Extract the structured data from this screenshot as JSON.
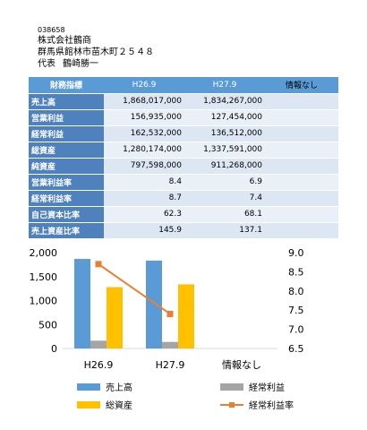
{
  "header": {
    "code": "038658",
    "company": "株式会社鶴商",
    "address": "群馬県館林市苗木町２５４８",
    "rep_title": "代表",
    "rep_name": "鶴崎勝一"
  },
  "table": {
    "header": [
      "財務指標",
      "H26.9",
      "H27.9",
      "情報なし"
    ],
    "rows": [
      {
        "label": "売上高",
        "v1": "1,868,017,000",
        "v2": "1,834,267,000",
        "v3": ""
      },
      {
        "label": "営業利益",
        "v1": "156,935,000",
        "v2": "127,454,000",
        "v3": ""
      },
      {
        "label": "経常利益",
        "v1": "162,532,000",
        "v2": "136,512,000",
        "v3": ""
      },
      {
        "label": "総資産",
        "v1": "1,280,174,000",
        "v2": "1,337,591,000",
        "v3": ""
      },
      {
        "label": "純資産",
        "v1": "797,598,000",
        "v2": "911,268,000",
        "v3": ""
      },
      {
        "label": "営業利益率",
        "v1": "8.4",
        "v2": "6.9",
        "v3": ""
      },
      {
        "label": "経常利益率",
        "v1": "8.7",
        "v2": "7.4",
        "v3": ""
      },
      {
        "label": "自己資本比率",
        "v1": "62.3",
        "v2": "68.1",
        "v3": ""
      },
      {
        "label": "売上資産比率",
        "v1": "145.9",
        "v2": "137.1",
        "v3": ""
      }
    ]
  },
  "chart_data": {
    "type": "bar",
    "categories": [
      "H26.9",
      "H27.9",
      "情報なし"
    ],
    "series": [
      {
        "name": "売上高",
        "kind": "bar",
        "axis": "left",
        "color": "#5b9bd5",
        "values": [
          1868,
          1834,
          null
        ]
      },
      {
        "name": "経常利益",
        "kind": "bar",
        "axis": "left",
        "color": "#a5a5a5",
        "values": [
          163,
          137,
          null
        ]
      },
      {
        "name": "総資産",
        "kind": "bar",
        "axis": "left",
        "color": "#ffc000",
        "values": [
          1280,
          1338,
          null
        ]
      },
      {
        "name": "経常利益率",
        "kind": "line",
        "axis": "right",
        "color": "#ed7d31",
        "values": [
          8.7,
          7.4,
          null
        ]
      }
    ],
    "ylim_left": [
      0,
      2000
    ],
    "yticks_left": [
      "0",
      "500",
      "1,000",
      "1,500",
      "2,000"
    ],
    "ylim_right": [
      6.5,
      9.0
    ],
    "yticks_right": [
      "6.5",
      "7.0",
      "7.5",
      "8.0",
      "8.5",
      "9.0"
    ],
    "legend_position": "bottom",
    "grid": false
  }
}
